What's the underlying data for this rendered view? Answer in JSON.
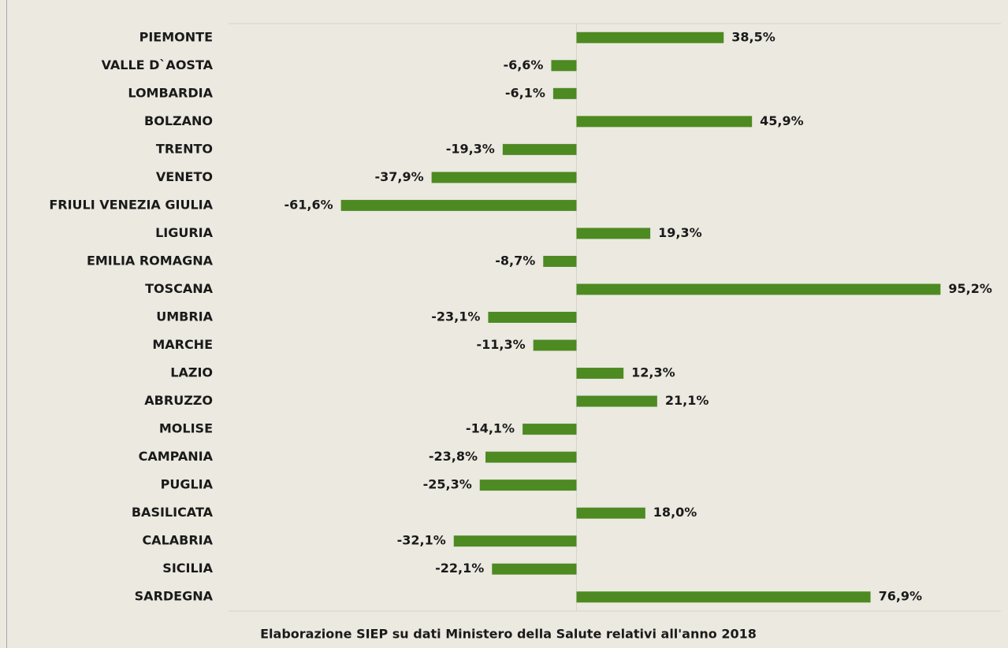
{
  "chart_data": {
    "type": "bar",
    "orientation": "horizontal",
    "categories": [
      "PIEMONTE",
      "VALLE D`AOSTA",
      "LOMBARDIA",
      "BOLZANO",
      "TRENTO",
      "VENETO",
      "FRIULI VENEZIA GIULIA",
      "LIGURIA",
      "EMILIA ROMAGNA",
      "TOSCANA",
      "UMBRIA",
      "MARCHE",
      "LAZIO",
      "ABRUZZO",
      "MOLISE",
      "CAMPANIA",
      "PUGLIA",
      "BASILICATA",
      "CALABRIA",
      "SICILIA",
      "SARDEGNA"
    ],
    "values": [
      38.5,
      -6.6,
      -6.1,
      45.9,
      -19.3,
      -37.9,
      -61.6,
      19.3,
      -8.7,
      95.2,
      -23.1,
      -11.3,
      12.3,
      21.1,
      -14.1,
      -23.8,
      -25.3,
      18.0,
      -32.1,
      -22.1,
      76.9
    ],
    "value_labels": [
      "38,5%",
      "-6,6%",
      "-6,1%",
      "45,9%",
      "-19,3%",
      "-37,9%",
      "-61,6%",
      "19,3%",
      "-8,7%",
      "95,2%",
      "-23,1%",
      "-11,3%",
      "12,3%",
      "21,1%",
      "-14,1%",
      "-23,8%",
      "-25,3%",
      "18,0%",
      "-32,1%",
      "-22,1%",
      "76,9%"
    ],
    "color": "#4d8a22",
    "xlim": [
      -91,
      111
    ],
    "note": "Elaborazione SIEP su dati Ministero della Salute relativi all'anno 2018"
  }
}
